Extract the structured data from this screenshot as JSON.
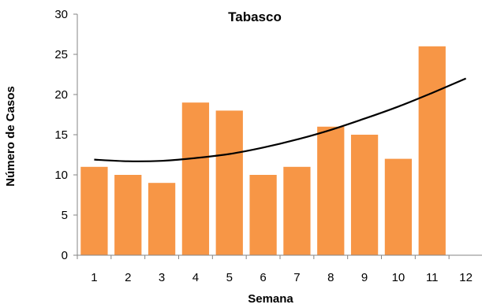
{
  "chart_data": {
    "type": "bar",
    "title": "Tabasco",
    "xlabel": "Semana",
    "ylabel": "Número de Casos",
    "categories": [
      "1",
      "2",
      "3",
      "4",
      "5",
      "6",
      "7",
      "8",
      "9",
      "10",
      "11",
      "12"
    ],
    "series": [
      {
        "values": [
          11,
          10,
          9,
          19,
          18,
          10,
          11,
          16,
          15,
          12,
          26,
          null
        ]
      }
    ],
    "trendline": {
      "type": "polynomial",
      "x": [
        1,
        2,
        3,
        4,
        5,
        6,
        7,
        8,
        9,
        10,
        11,
        12
      ],
      "y": [
        11.9,
        11.7,
        11.75,
        12.1,
        12.6,
        13.4,
        14.4,
        15.6,
        17.0,
        18.5,
        20.2,
        22.0
      ]
    },
    "yticks": [
      "0",
      "5",
      "10",
      "15",
      "20",
      "25",
      "30"
    ],
    "ylim": [
      0,
      30
    ],
    "grid": false,
    "bar_color": "#F79646",
    "trend_color": "#000000"
  }
}
